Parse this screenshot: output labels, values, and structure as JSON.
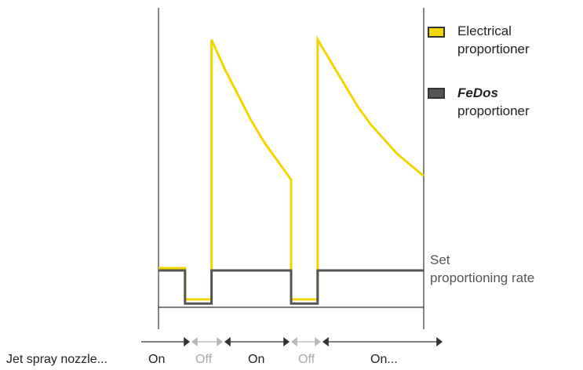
{
  "chart_data": {
    "type": "line",
    "x": [
      0,
      1,
      1,
      2,
      2,
      2.5,
      3,
      3.5,
      4,
      4.5,
      5,
      5,
      6,
      6,
      6.5,
      7,
      7.5,
      8,
      8.5,
      9,
      9.5,
      10
    ],
    "series": [
      {
        "name": "Electrical proportioner",
        "color": "#f2d600",
        "values": [
          1.0,
          1.0,
          0.15,
          0.15,
          7.2,
          6.4,
          5.7,
          5.0,
          4.4,
          3.9,
          3.4,
          0.15,
          0.15,
          7.2,
          6.6,
          6.0,
          5.4,
          4.9,
          4.5,
          4.1,
          3.8,
          3.5
        ]
      },
      {
        "name": "FeDos proportioner",
        "color": "#555555",
        "values": [
          1.0,
          1.0,
          0.1,
          0.1,
          1.0,
          1.0,
          1.0,
          1.0,
          1.0,
          1.0,
          1.0,
          0.1,
          0.1,
          1.0,
          1.0,
          1.0,
          1.0,
          1.0,
          1.0,
          1.0,
          1.0,
          1.0
        ]
      }
    ],
    "set_rate": 1.0,
    "set_rate_label_line1": "Set",
    "set_rate_label_line2": "proportioning rate",
    "xlabel": "",
    "ylabel": "",
    "legend": {
      "placement": "right",
      "electrical_line1": "Electrical",
      "electrical_line2": "proportioner",
      "fedos_line1": "FeDos",
      "fedos_line2": "proportioner"
    },
    "timeline": {
      "label": "Jet spray nozzle...",
      "segments": [
        {
          "label": "On",
          "state": "on",
          "start": 0,
          "end": 1
        },
        {
          "label": "Off",
          "state": "off",
          "start": 1,
          "end": 2
        },
        {
          "label": "On",
          "state": "on",
          "start": 2,
          "end": 4
        },
        {
          "label": "Off",
          "state": "off",
          "start": 4,
          "end": 5
        },
        {
          "label": "On...",
          "state": "on",
          "start": 5,
          "end": 10
        }
      ]
    }
  },
  "colors": {
    "electrical": "#f2d600",
    "fedos": "#555555",
    "axis": "#333333",
    "off_text": "#a8a8a8"
  }
}
